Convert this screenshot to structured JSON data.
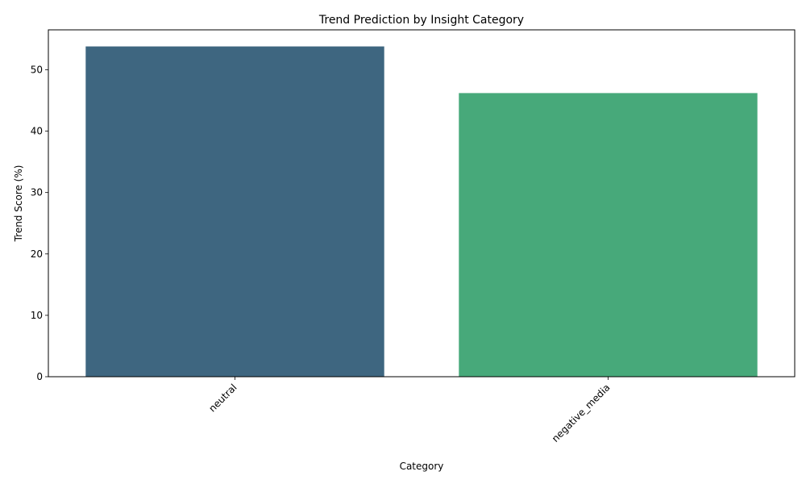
{
  "chart_data": {
    "type": "bar",
    "title": "Trend Prediction by Insight Category",
    "xlabel": "Category",
    "ylabel": "Trend Score (%)",
    "categories": [
      "neutral",
      "negative_media"
    ],
    "values": [
      53.8,
      46.2
    ],
    "colors": [
      "#3e6680",
      "#47a97a"
    ],
    "ylim": [
      0,
      56.5
    ],
    "yticks": [
      0,
      10,
      20,
      30,
      40,
      50
    ],
    "grid": false,
    "legend": "none"
  }
}
